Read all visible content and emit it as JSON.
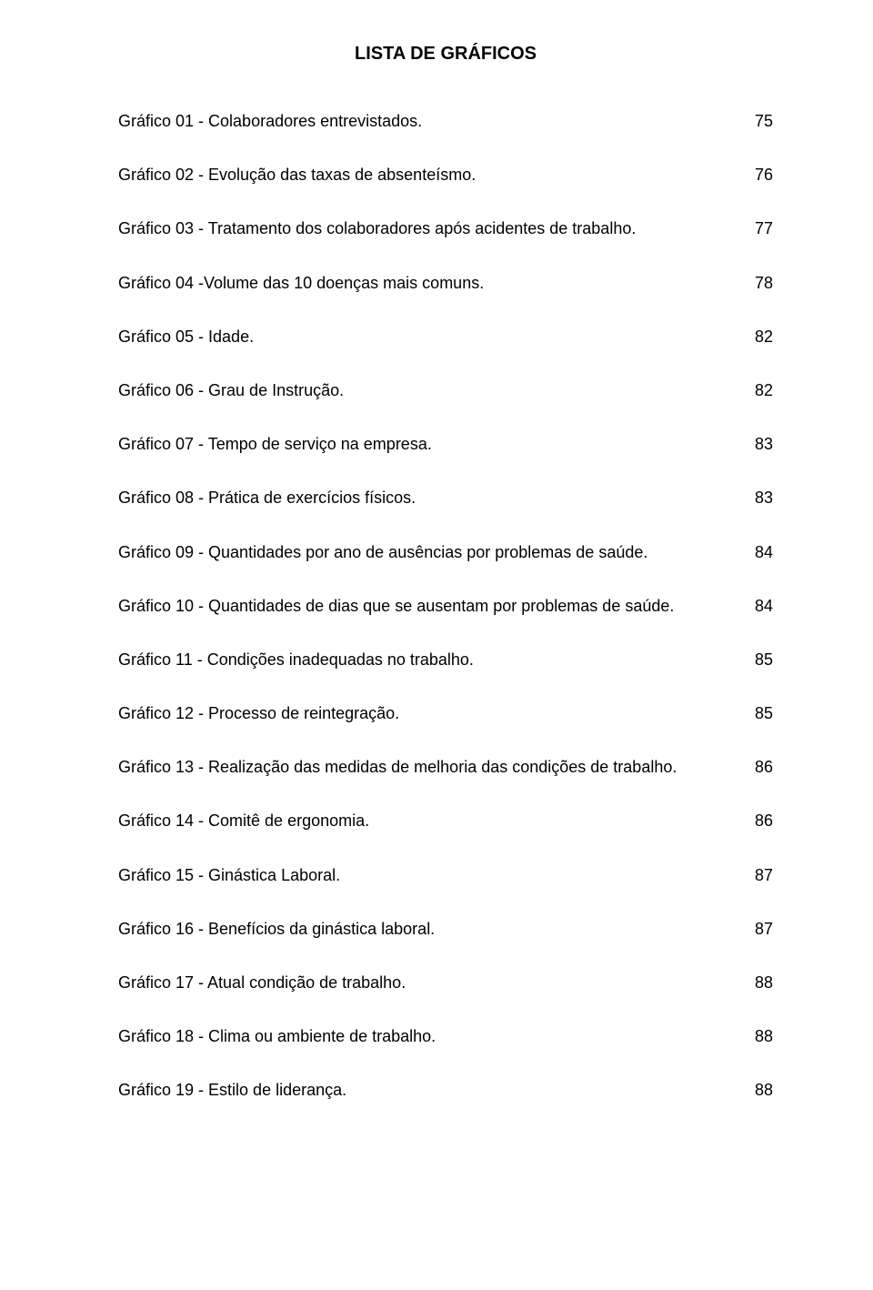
{
  "title": "LISTA DE GRÁFICOS",
  "title_fontsize": 20,
  "body_fontsize": 18,
  "text_color": "#000000",
  "background_color": "#ffffff",
  "leader_char": ".",
  "entries": [
    {
      "label": "Gráfico 01 - Colaboradores entrevistados.",
      "page": "75"
    },
    {
      "label": "Gráfico 02 - Evolução das taxas de absenteísmo.",
      "page": "76"
    },
    {
      "label": "Gráfico 03 - Tratamento dos colaboradores após acidentes de trabalho.",
      "page": "77"
    },
    {
      "label": "Gráfico 04 -Volume das 10 doenças mais comuns.",
      "page": "78"
    },
    {
      "label": "Gráfico 05 - Idade.",
      "page": "82"
    },
    {
      "label": "Gráfico 06 - Grau de Instrução.",
      "page": "82"
    },
    {
      "label": "Gráfico 07 - Tempo de serviço na empresa.",
      "page": "83"
    },
    {
      "label": "Gráfico 08 - Prática de exercícios físicos.",
      "page": "83"
    },
    {
      "label": "Gráfico 09 - Quantidades por ano de ausências por problemas de saúde.",
      "page": "84"
    },
    {
      "label": "Gráfico 10 - Quantidades de dias que se ausentam por problemas de saúde.",
      "page": "84"
    },
    {
      "label": "Gráfico 11 - Condições inadequadas no trabalho.",
      "page": "85"
    },
    {
      "label": "Gráfico 12 - Processo de reintegração.",
      "page": "85"
    },
    {
      "label": "Gráfico 13 - Realização das medidas de melhoria das condições de trabalho.",
      "page": "86"
    },
    {
      "label": "Gráfico 14 - Comitê de ergonomia.",
      "page": "86"
    },
    {
      "label": "Gráfico 15 - Ginástica Laboral.",
      "page": "87"
    },
    {
      "label": "Gráfico 16 - Benefícios da ginástica laboral.",
      "page": "87"
    },
    {
      "label": "Gráfico 17 - Atual condição de trabalho.",
      "page": "88"
    },
    {
      "label": "Gráfico 18 - Clima ou ambiente de trabalho.",
      "page": "88"
    },
    {
      "label": "Gráfico 19 - Estilo de liderança.",
      "page": "88"
    }
  ]
}
